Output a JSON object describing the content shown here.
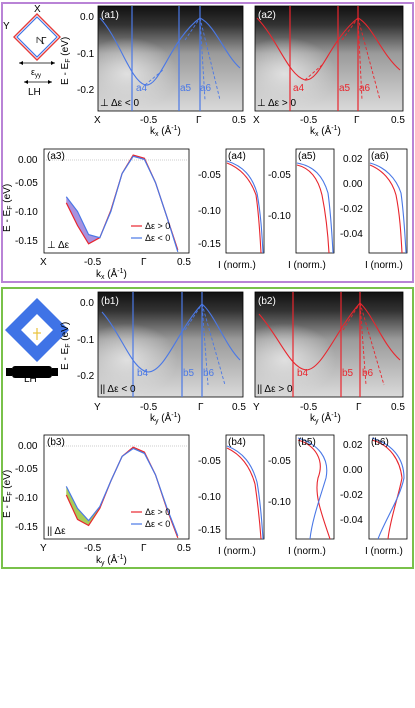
{
  "colors": {
    "purple_frame": "#b983d6",
    "green_frame": "#79c14a",
    "blue": "#4a78e6",
    "red": "#e8262e",
    "purple_fill": "#a792e0",
    "green_fill": "#a7cc58",
    "diamond_blue": "#3f73e6",
    "diamond_red": "#e53b3b"
  },
  "top": {
    "inset": {
      "X": "X",
      "Y": "Y",
      "Gamma": "Γ",
      "strain": "ε",
      "strain_sub": "yy",
      "pol": "LH"
    },
    "a1": {
      "label": "(a1)",
      "note": "⊥ Δε < 0",
      "cuts": [
        "a4",
        "a5",
        "a6"
      ]
    },
    "a2": {
      "label": "(a2)",
      "note": "⊥ Δε > 0",
      "cuts": [
        "a4",
        "a5",
        "a6"
      ]
    },
    "ylabel_img": "E - E",
    "ylabel_img_sub": "F",
    "ylabel_img_unit": " (eV)",
    "yticks_img": [
      "0.0",
      "-0.1",
      "-0.2"
    ],
    "xlabel": "k",
    "xlabel_sub": "x",
    "xlabel_unit": " (Å",
    "xlabel_exp": "-1",
    "xlabel_close": ")",
    "xticks": [
      "X",
      "-0.5",
      "Γ",
      "0.5"
    ],
    "a3": {
      "label": "(a3)",
      "note": "⊥ Δε",
      "legend": [
        "Δε > 0",
        "Δε < 0"
      ],
      "yticks": [
        "0.00",
        "-0.05",
        "-0.10",
        "-0.15"
      ]
    },
    "edc": [
      {
        "label": "(a4)",
        "yticks": [
          "-0.05",
          "-0.10",
          "-0.15"
        ],
        "xlabel": "I (norm.)"
      },
      {
        "label": "(a5)",
        "yticks": [
          "-0.05",
          "-0.10"
        ],
        "xlabel": "I (norm.)"
      },
      {
        "label": "(a6)",
        "yticks": [
          "0.02",
          "0.00",
          "-0.02",
          "-0.04"
        ],
        "xlabel": "I (norm.)"
      }
    ]
  },
  "bottom": {
    "inset": {
      "pol": "LH"
    },
    "b1": {
      "label": "(b1)",
      "note": "|| Δε < 0",
      "cuts": [
        "b4",
        "b5",
        "b6"
      ]
    },
    "b2": {
      "label": "(b2)",
      "note": "|| Δε > 0",
      "cuts": [
        "b4",
        "b5",
        "b6"
      ]
    },
    "xlabel_sub": "y",
    "xticks": [
      "Y",
      "-0.5",
      "Γ",
      "0.5"
    ],
    "b3": {
      "label": "(b3)",
      "note": "|| Δε",
      "legend": [
        "Δε > 0",
        "Δε < 0"
      ],
      "yticks": [
        "0.00",
        "-0.05",
        "-0.10",
        "-0.15"
      ]
    },
    "edc": [
      {
        "label": "(b4)",
        "yticks": [
          "-0.05",
          "-0.10",
          "-0.15"
        ],
        "xlabel": "I (norm.)"
      },
      {
        "label": "(b5)",
        "yticks": [
          "-0.05",
          "-0.10"
        ],
        "xlabel": "I (norm.)"
      },
      {
        "label": "(b6)",
        "yticks": [
          "0.02",
          "0.00",
          "-0.02",
          "-0.04"
        ],
        "xlabel": "I (norm.)"
      }
    ]
  },
  "chart_data": [
    {
      "type": "line",
      "title": "(a3)",
      "xlabel": "kx (Å-1)",
      "ylabel": "E - EF (eV)",
      "xlim": [
        -0.8,
        0.5
      ],
      "ylim": [
        -0.16,
        0.01
      ],
      "x": [
        -0.6,
        -0.5,
        -0.4,
        -0.3,
        -0.2,
        -0.1,
        0.0,
        0.1,
        0.2,
        0.3,
        0.4
      ],
      "series": [
        {
          "name": "Δε > 0",
          "values": [
            -0.078,
            -0.115,
            -0.145,
            -0.135,
            -0.09,
            -0.03,
            0.0,
            -0.005,
            -0.045,
            -0.1,
            -0.155
          ]
        },
        {
          "name": "Δε < 0",
          "values": [
            -0.068,
            -0.092,
            -0.13,
            -0.135,
            -0.092,
            -0.03,
            -0.002,
            -0.007,
            -0.045,
            -0.1,
            -0.158
          ]
        }
      ]
    },
    {
      "type": "line",
      "title": "(b3)",
      "xlabel": "ky (Å-1)",
      "ylabel": "E - EF (eV)",
      "xlim": [
        -0.8,
        0.5
      ],
      "ylim": [
        -0.16,
        0.01
      ],
      "x": [
        -0.6,
        -0.5,
        -0.4,
        -0.3,
        -0.2,
        -0.1,
        0.0,
        0.1,
        0.2,
        0.3,
        0.4
      ],
      "series": [
        {
          "name": "Δε > 0",
          "values": [
            -0.088,
            -0.128,
            -0.138,
            -0.11,
            -0.065,
            -0.025,
            -0.01,
            -0.018,
            -0.055,
            -0.11,
            -0.158
          ]
        },
        {
          "name": "Δε < 0",
          "values": [
            -0.074,
            -0.11,
            -0.13,
            -0.107,
            -0.065,
            -0.025,
            -0.012,
            -0.02,
            -0.055,
            -0.108,
            -0.155
          ]
        }
      ]
    }
  ]
}
